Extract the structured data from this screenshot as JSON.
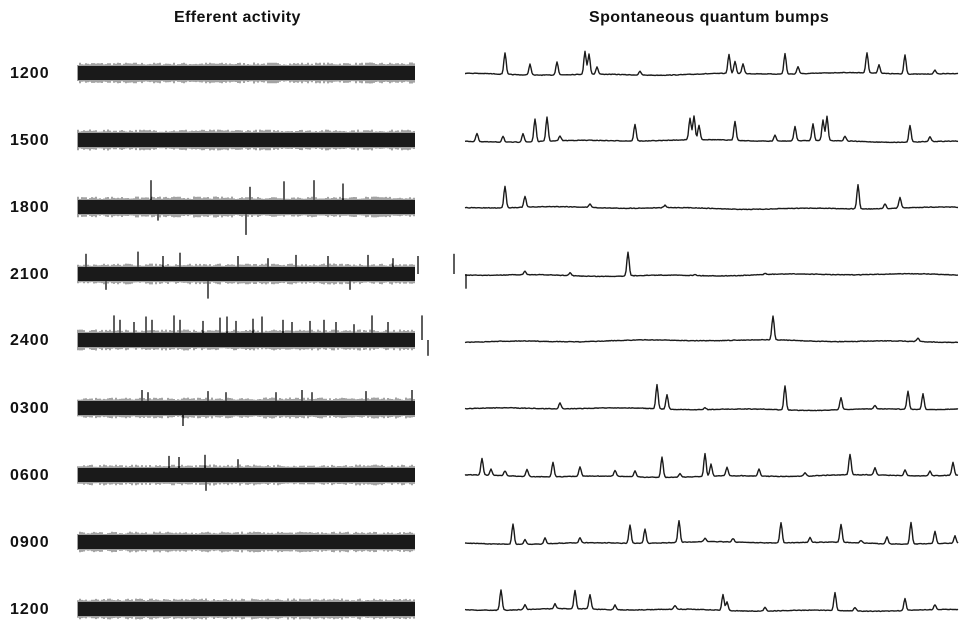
{
  "headers": {
    "efferent": "Efferent activity",
    "bumps": "Spontaneous quantum bumps"
  },
  "ink_color": "#1a1a1a",
  "rows": [
    {
      "time": "1200",
      "efferent_spikes": [],
      "bumps": [
        [
          40,
          0.9
        ],
        [
          65,
          0.45
        ],
        [
          92,
          0.55
        ],
        [
          120,
          0.95
        ],
        [
          124,
          0.85
        ],
        [
          132,
          0.3
        ],
        [
          175,
          0.15
        ],
        [
          264,
          0.8
        ],
        [
          270,
          0.5
        ],
        [
          278,
          0.4
        ],
        [
          320,
          0.85
        ],
        [
          333,
          0.3
        ],
        [
          402,
          0.85
        ],
        [
          414,
          0.35
        ],
        [
          440,
          0.8
        ],
        [
          470,
          0.15
        ]
      ]
    },
    {
      "time": "1500",
      "efferent_spikes": [],
      "bumps": [
        [
          12,
          0.35
        ],
        [
          38,
          0.25
        ],
        [
          58,
          0.35
        ],
        [
          70,
          0.95
        ],
        [
          82,
          1.0
        ],
        [
          95,
          0.2
        ],
        [
          170,
          0.7
        ],
        [
          225,
          0.9
        ],
        [
          229,
          1.0
        ],
        [
          234,
          0.6
        ],
        [
          270,
          0.8
        ],
        [
          310,
          0.25
        ],
        [
          330,
          0.6
        ],
        [
          348,
          0.7
        ],
        [
          358,
          0.85
        ],
        [
          362,
          1.0
        ],
        [
          380,
          0.2
        ],
        [
          445,
          0.7
        ],
        [
          465,
          0.2
        ]
      ]
    },
    {
      "time": "1800",
      "efferent_spikes": [
        [
          73,
          0.9,
          1
        ],
        [
          80,
          0.3,
          -1
        ],
        [
          168,
          0.95,
          -1
        ],
        [
          172,
          0.6,
          1
        ],
        [
          206,
          0.85,
          1
        ],
        [
          236,
          0.9,
          1
        ],
        [
          265,
          0.75,
          1
        ]
      ],
      "bumps": [
        [
          40,
          0.9
        ],
        [
          60,
          0.45
        ],
        [
          125,
          0.15
        ],
        [
          200,
          0.1
        ],
        [
          393,
          1.0
        ],
        [
          420,
          0.2
        ],
        [
          435,
          0.45
        ]
      ]
    },
    {
      "time": "2100",
      "efferent_spikes": [
        [
          8,
          0.6,
          1
        ],
        [
          28,
          0.4,
          -1
        ],
        [
          60,
          0.7,
          1
        ],
        [
          85,
          0.5,
          1
        ],
        [
          102,
          0.65,
          1
        ],
        [
          130,
          0.8,
          -1
        ],
        [
          160,
          0.5,
          1
        ],
        [
          190,
          0.4,
          1
        ],
        [
          218,
          0.55,
          1
        ],
        [
          250,
          0.5,
          1
        ],
        [
          272,
          0.4,
          -1
        ],
        [
          290,
          0.55,
          1
        ],
        [
          315,
          0.4,
          1
        ],
        [
          340,
          0.5,
          1
        ],
        [
          376,
          0.6,
          1
        ],
        [
          388,
          0.35,
          -1
        ]
      ],
      "bumps": [
        [
          60,
          0.15
        ],
        [
          105,
          0.12
        ],
        [
          163,
          1.0
        ],
        [
          230,
          0.05
        ],
        [
          300,
          0.05
        ]
      ]
    },
    {
      "time": "2400",
      "efferent_spikes": [
        [
          36,
          0.8,
          1
        ],
        [
          42,
          0.6,
          1
        ],
        [
          56,
          0.5,
          1
        ],
        [
          68,
          0.75,
          1
        ],
        [
          74,
          0.6,
          1
        ],
        [
          96,
          0.8,
          1
        ],
        [
          102,
          0.6,
          1
        ],
        [
          125,
          0.55,
          1
        ],
        [
          142,
          0.7,
          1
        ],
        [
          149,
          0.75,
          1
        ],
        [
          158,
          0.55,
          1
        ],
        [
          175,
          0.65,
          1
        ],
        [
          184,
          0.75,
          1
        ],
        [
          205,
          0.6,
          1
        ],
        [
          214,
          0.5,
          1
        ],
        [
          232,
          0.55,
          1
        ],
        [
          246,
          0.6,
          1
        ],
        [
          258,
          0.5,
          1
        ],
        [
          276,
          0.4,
          1
        ],
        [
          294,
          0.8,
          1
        ],
        [
          310,
          0.5,
          1
        ],
        [
          344,
          0.8,
          1
        ],
        [
          350,
          0.4,
          -1
        ]
      ],
      "bumps": [
        [
          308,
          1.0
        ],
        [
          453,
          0.15
        ]
      ]
    },
    {
      "time": "0300",
      "efferent_spikes": [
        [
          64,
          0.5,
          1
        ],
        [
          70,
          0.4,
          1
        ],
        [
          105,
          0.5,
          -1
        ],
        [
          130,
          0.45,
          1
        ],
        [
          148,
          0.4,
          1
        ],
        [
          198,
          0.4,
          1
        ],
        [
          224,
          0.5,
          1
        ],
        [
          234,
          0.4,
          1
        ],
        [
          288,
          0.45,
          1
        ],
        [
          334,
          0.5,
          1
        ]
      ],
      "bumps": [
        [
          95,
          0.25
        ],
        [
          192,
          1.0
        ],
        [
          202,
          0.6
        ],
        [
          240,
          0.08
        ],
        [
          320,
          1.0
        ],
        [
          376,
          0.5
        ],
        [
          410,
          0.15
        ],
        [
          443,
          0.75
        ],
        [
          458,
          0.65
        ]
      ]
    },
    {
      "time": "0600",
      "efferent_spikes": [
        [
          91,
          0.55,
          1
        ],
        [
          101,
          0.5,
          1
        ],
        [
          127,
          0.6,
          1
        ],
        [
          128,
          0.4,
          -1
        ],
        [
          160,
          0.4,
          1
        ]
      ],
      "bumps": [
        [
          17,
          0.7
        ],
        [
          26,
          0.25
        ],
        [
          40,
          0.2
        ],
        [
          62,
          0.3
        ],
        [
          88,
          0.6
        ],
        [
          115,
          0.4
        ],
        [
          150,
          0.25
        ],
        [
          170,
          0.25
        ],
        [
          197,
          0.85
        ],
        [
          215,
          0.15
        ],
        [
          240,
          0.95
        ],
        [
          246,
          0.5
        ],
        [
          262,
          0.35
        ],
        [
          294,
          0.3
        ],
        [
          340,
          0.15
        ],
        [
          385,
          0.85
        ],
        [
          410,
          0.3
        ],
        [
          440,
          0.25
        ],
        [
          465,
          0.2
        ],
        [
          488,
          0.55
        ]
      ]
    },
    {
      "time": "0900",
      "efferent_spikes": [],
      "bumps": [
        [
          48,
          0.85
        ],
        [
          60,
          0.2
        ],
        [
          80,
          0.25
        ],
        [
          115,
          0.2
        ],
        [
          165,
          0.75
        ],
        [
          180,
          0.6
        ],
        [
          214,
          0.9
        ],
        [
          240,
          0.15
        ],
        [
          268,
          0.15
        ],
        [
          316,
          0.85
        ],
        [
          345,
          0.2
        ],
        [
          376,
          0.75
        ],
        [
          396,
          0.1
        ],
        [
          422,
          0.3
        ],
        [
          446,
          0.9
        ],
        [
          470,
          0.5
        ],
        [
          490,
          0.3
        ]
      ]
    },
    {
      "time": "1200",
      "efferent_spikes": [],
      "bumps": [
        [
          36,
          0.85
        ],
        [
          60,
          0.2
        ],
        [
          90,
          0.2
        ],
        [
          110,
          0.75
        ],
        [
          125,
          0.6
        ],
        [
          150,
          0.2
        ],
        [
          210,
          0.15
        ],
        [
          258,
          0.65
        ],
        [
          262,
          0.35
        ],
        [
          300,
          0.15
        ],
        [
          370,
          0.75
        ],
        [
          390,
          0.15
        ],
        [
          440,
          0.5
        ],
        [
          470,
          0.2
        ]
      ]
    }
  ]
}
